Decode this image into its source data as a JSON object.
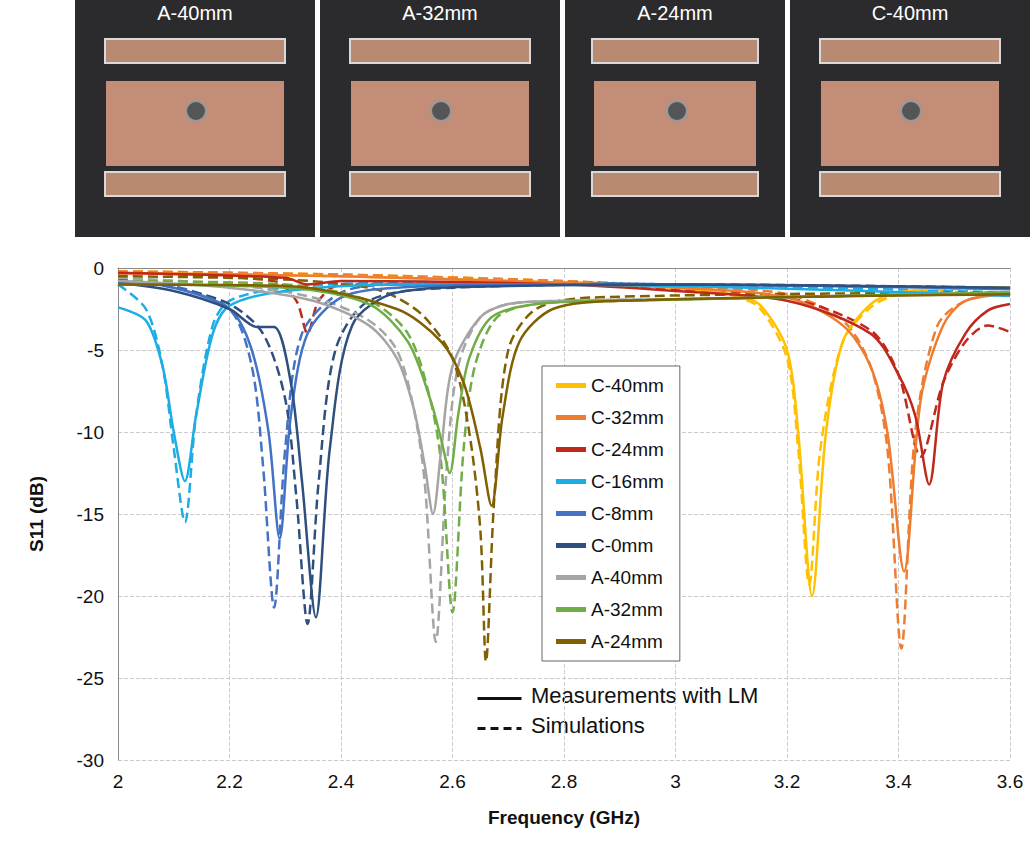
{
  "photos": [
    {
      "label": "A-40mm"
    },
    {
      "label": "A-32mm"
    },
    {
      "label": "A-24mm"
    },
    {
      "label": "C-40mm"
    }
  ],
  "chart_data": {
    "type": "line",
    "x_label": "Frequency (GHz)",
    "y_label": "S11 (dB)",
    "xlim": [
      2,
      3.6
    ],
    "xticks": [
      2,
      2.2,
      2.4,
      2.6,
      2.8,
      3,
      3.2,
      3.4,
      3.6
    ],
    "ylim": [
      -30,
      0
    ],
    "yticks": [
      -30,
      -25,
      -20,
      -15,
      -10,
      -5,
      0
    ],
    "grid": true,
    "legend": "right",
    "line_styles": [
      {
        "name": "Measurements with LM",
        "line_style": "solid"
      },
      {
        "name": "Simulations",
        "line_style": "dashed"
      }
    ],
    "series": [
      {
        "name": "C-40mm",
        "color": "#ffc000",
        "measured": {
          "x": [
            2.0,
            2.4,
            2.8,
            3.0,
            3.1,
            3.15,
            3.2,
            3.22,
            3.245,
            3.27,
            3.3,
            3.35,
            3.4,
            3.5,
            3.6
          ],
          "values": [
            -0.3,
            -0.5,
            -0.9,
            -1.2,
            -1.6,
            -2.2,
            -5,
            -10,
            -20,
            -10,
            -4.5,
            -2.2,
            -1.5,
            -1.2,
            -1.2
          ]
        },
        "simulated": {
          "x": [
            2.0,
            2.4,
            2.8,
            3.0,
            3.1,
            3.15,
            3.2,
            3.22,
            3.24,
            3.26,
            3.3,
            3.35,
            3.4,
            3.5,
            3.6
          ],
          "values": [
            -0.2,
            -0.4,
            -0.8,
            -1.2,
            -1.7,
            -2.4,
            -5.5,
            -11,
            -19.3,
            -11,
            -4.5,
            -2.4,
            -1.6,
            -1.3,
            -1.2
          ]
        }
      },
      {
        "name": "C-32mm",
        "color": "#ed7d31",
        "measured": {
          "x": [
            2.0,
            2.4,
            2.8,
            3.0,
            3.2,
            3.3,
            3.35,
            3.38,
            3.41,
            3.44,
            3.48,
            3.52,
            3.6
          ],
          "values": [
            -0.3,
            -0.5,
            -0.9,
            -1.2,
            -1.8,
            -3.5,
            -6,
            -10,
            -18.5,
            -8,
            -3.5,
            -2,
            -1.6
          ]
        },
        "simulated": {
          "x": [
            2.0,
            2.4,
            2.8,
            3.0,
            3.2,
            3.3,
            3.35,
            3.38,
            3.405,
            3.43,
            3.47,
            3.52,
            3.6
          ],
          "values": [
            -0.2,
            -0.4,
            -0.8,
            -1.1,
            -1.6,
            -3.2,
            -6,
            -11,
            -23.2,
            -10,
            -3.5,
            -2,
            -1.5
          ]
        }
      },
      {
        "name": "C-24mm",
        "color": "#c0281c",
        "measured": {
          "x": [
            2.0,
            2.3,
            2.34,
            2.4,
            2.8,
            3.0,
            3.2,
            3.35,
            3.4,
            3.43,
            3.455,
            3.48,
            3.52,
            3.56,
            3.6
          ],
          "values": [
            -0.3,
            -0.6,
            -1.0,
            -0.8,
            -1.0,
            -1.4,
            -2,
            -4,
            -6.5,
            -9,
            -13.2,
            -7,
            -4,
            -2.6,
            -2.2
          ]
        },
        "simulated": {
          "x": [
            2.0,
            2.28,
            2.32,
            2.34,
            2.36,
            2.4,
            2.8,
            3.0,
            3.2,
            3.35,
            3.4,
            3.44,
            3.48,
            3.52,
            3.56,
            3.6
          ],
          "values": [
            -0.3,
            -0.8,
            -2,
            -4,
            -2,
            -1,
            -1,
            -1.3,
            -1.8,
            -3.8,
            -6.5,
            -11.5,
            -7,
            -4.5,
            -3.5,
            -3.9
          ]
        }
      },
      {
        "name": "C-16mm",
        "color": "#1cade4",
        "measured": {
          "x": [
            2.0,
            2.05,
            2.08,
            2.1,
            2.12,
            2.14,
            2.17,
            2.2,
            2.3,
            2.5,
            3.0,
            3.6
          ],
          "values": [
            -2.4,
            -3.2,
            -6,
            -10,
            -13,
            -9,
            -4,
            -2.3,
            -1.4,
            -1,
            -1.1,
            -1.7
          ]
        },
        "simulated": {
          "x": [
            2.0,
            2.05,
            2.08,
            2.1,
            2.12,
            2.14,
            2.17,
            2.2,
            2.3,
            2.5,
            3.0,
            3.6
          ],
          "values": [
            -1,
            -2.5,
            -6,
            -11,
            -15.5,
            -9,
            -3.5,
            -2,
            -1.2,
            -0.9,
            -1,
            -1.5
          ]
        }
      },
      {
        "name": "C-8mm",
        "color": "#4472c4",
        "measured": {
          "x": [
            2.0,
            2.1,
            2.2,
            2.24,
            2.27,
            2.29,
            2.31,
            2.34,
            2.4,
            2.5,
            2.8,
            3.0,
            3.6
          ],
          "values": [
            -0.8,
            -1.2,
            -2.5,
            -5,
            -10,
            -16.5,
            -9,
            -4,
            -1.8,
            -1.2,
            -1,
            -1,
            -1.3
          ]
        },
        "simulated": {
          "x": [
            2.0,
            2.1,
            2.2,
            2.24,
            2.26,
            2.28,
            2.3,
            2.33,
            2.4,
            2.5,
            2.8,
            3.0,
            3.6
          ],
          "values": [
            -0.7,
            -1.1,
            -2.5,
            -6,
            -12,
            -20.7,
            -11,
            -4,
            -1.5,
            -1,
            -0.9,
            -1,
            -1.2
          ]
        }
      },
      {
        "name": "C-0mm",
        "color": "#2f4f7f",
        "measured": {
          "x": [
            2.0,
            2.1,
            2.2,
            2.25,
            2.28,
            2.31,
            2.33,
            2.355,
            2.38,
            2.42,
            2.5,
            2.7,
            3.0,
            3.6
          ],
          "values": [
            -0.9,
            -1.4,
            -2.5,
            -3.6,
            -3.6,
            -7,
            -13,
            -21.3,
            -11,
            -3.5,
            -1.5,
            -1.1,
            -1,
            -1.2
          ]
        },
        "simulated": {
          "x": [
            2.0,
            2.1,
            2.2,
            2.26,
            2.3,
            2.32,
            2.34,
            2.36,
            2.39,
            2.45,
            2.6,
            3.0,
            3.6
          ],
          "values": [
            -0.7,
            -1.2,
            -2.2,
            -4,
            -8,
            -14,
            -21.7,
            -13,
            -5,
            -2,
            -1.2,
            -1,
            -1.2
          ]
        }
      },
      {
        "name": "A-40mm",
        "color": "#a5a5a5",
        "measured": {
          "x": [
            2.0,
            2.2,
            2.35,
            2.45,
            2.5,
            2.53,
            2.55,
            2.565,
            2.58,
            2.6,
            2.65,
            2.7,
            2.8,
            3.0,
            3.6
          ],
          "values": [
            -0.8,
            -1.2,
            -2,
            -3.5,
            -5.5,
            -8.5,
            -12,
            -15,
            -11,
            -6,
            -3,
            -2.2,
            -2,
            -1.9,
            -1.5
          ]
        },
        "simulated": {
          "x": [
            2.0,
            2.2,
            2.35,
            2.45,
            2.5,
            2.53,
            2.55,
            2.57,
            2.59,
            2.61,
            2.65,
            2.7,
            2.8,
            3.0,
            3.6
          ],
          "values": [
            -0.6,
            -1,
            -1.8,
            -3.2,
            -5,
            -8.5,
            -13,
            -22.8,
            -12,
            -6,
            -3,
            -2.2,
            -2,
            -1.9,
            -1.5
          ]
        }
      },
      {
        "name": "A-32mm",
        "color": "#70ad47",
        "measured": {
          "x": [
            2.0,
            2.3,
            2.45,
            2.52,
            2.56,
            2.58,
            2.595,
            2.61,
            2.63,
            2.67,
            2.75,
            2.9,
            3.6
          ],
          "values": [
            -1,
            -1.2,
            -2.2,
            -4.5,
            -8,
            -10.5,
            -12.5,
            -9,
            -5.5,
            -3,
            -2.2,
            -2,
            -1.5
          ]
        },
        "simulated": {
          "x": [
            2.0,
            2.3,
            2.45,
            2.52,
            2.56,
            2.58,
            2.6,
            2.62,
            2.64,
            2.68,
            2.75,
            2.9,
            3.6
          ],
          "values": [
            -0.8,
            -1,
            -2,
            -4,
            -8,
            -12,
            -21,
            -11,
            -6,
            -3,
            -2.2,
            -2,
            -1.5
          ]
        }
      },
      {
        "name": "A-24mm",
        "color": "#806000",
        "measured": {
          "x": [
            2.0,
            2.3,
            2.5,
            2.58,
            2.62,
            2.65,
            2.67,
            2.69,
            2.72,
            2.78,
            2.9,
            3.6
          ],
          "values": [
            -1,
            -1.1,
            -2.5,
            -4.5,
            -7,
            -11,
            -14.5,
            -9,
            -4.5,
            -2.5,
            -2,
            -1.6
          ]
        },
        "simulated": {
          "x": [
            2.0,
            2.3,
            2.45,
            2.5,
            2.55,
            2.6,
            2.63,
            2.65,
            2.66,
            2.675,
            2.7,
            2.75,
            2.85,
            3.6
          ],
          "values": [
            -0.5,
            -0.7,
            -1.2,
            -1.8,
            -3,
            -5.5,
            -10,
            -16,
            -24,
            -14,
            -5,
            -2.5,
            -1.8,
            -1.5
          ]
        }
      }
    ]
  }
}
